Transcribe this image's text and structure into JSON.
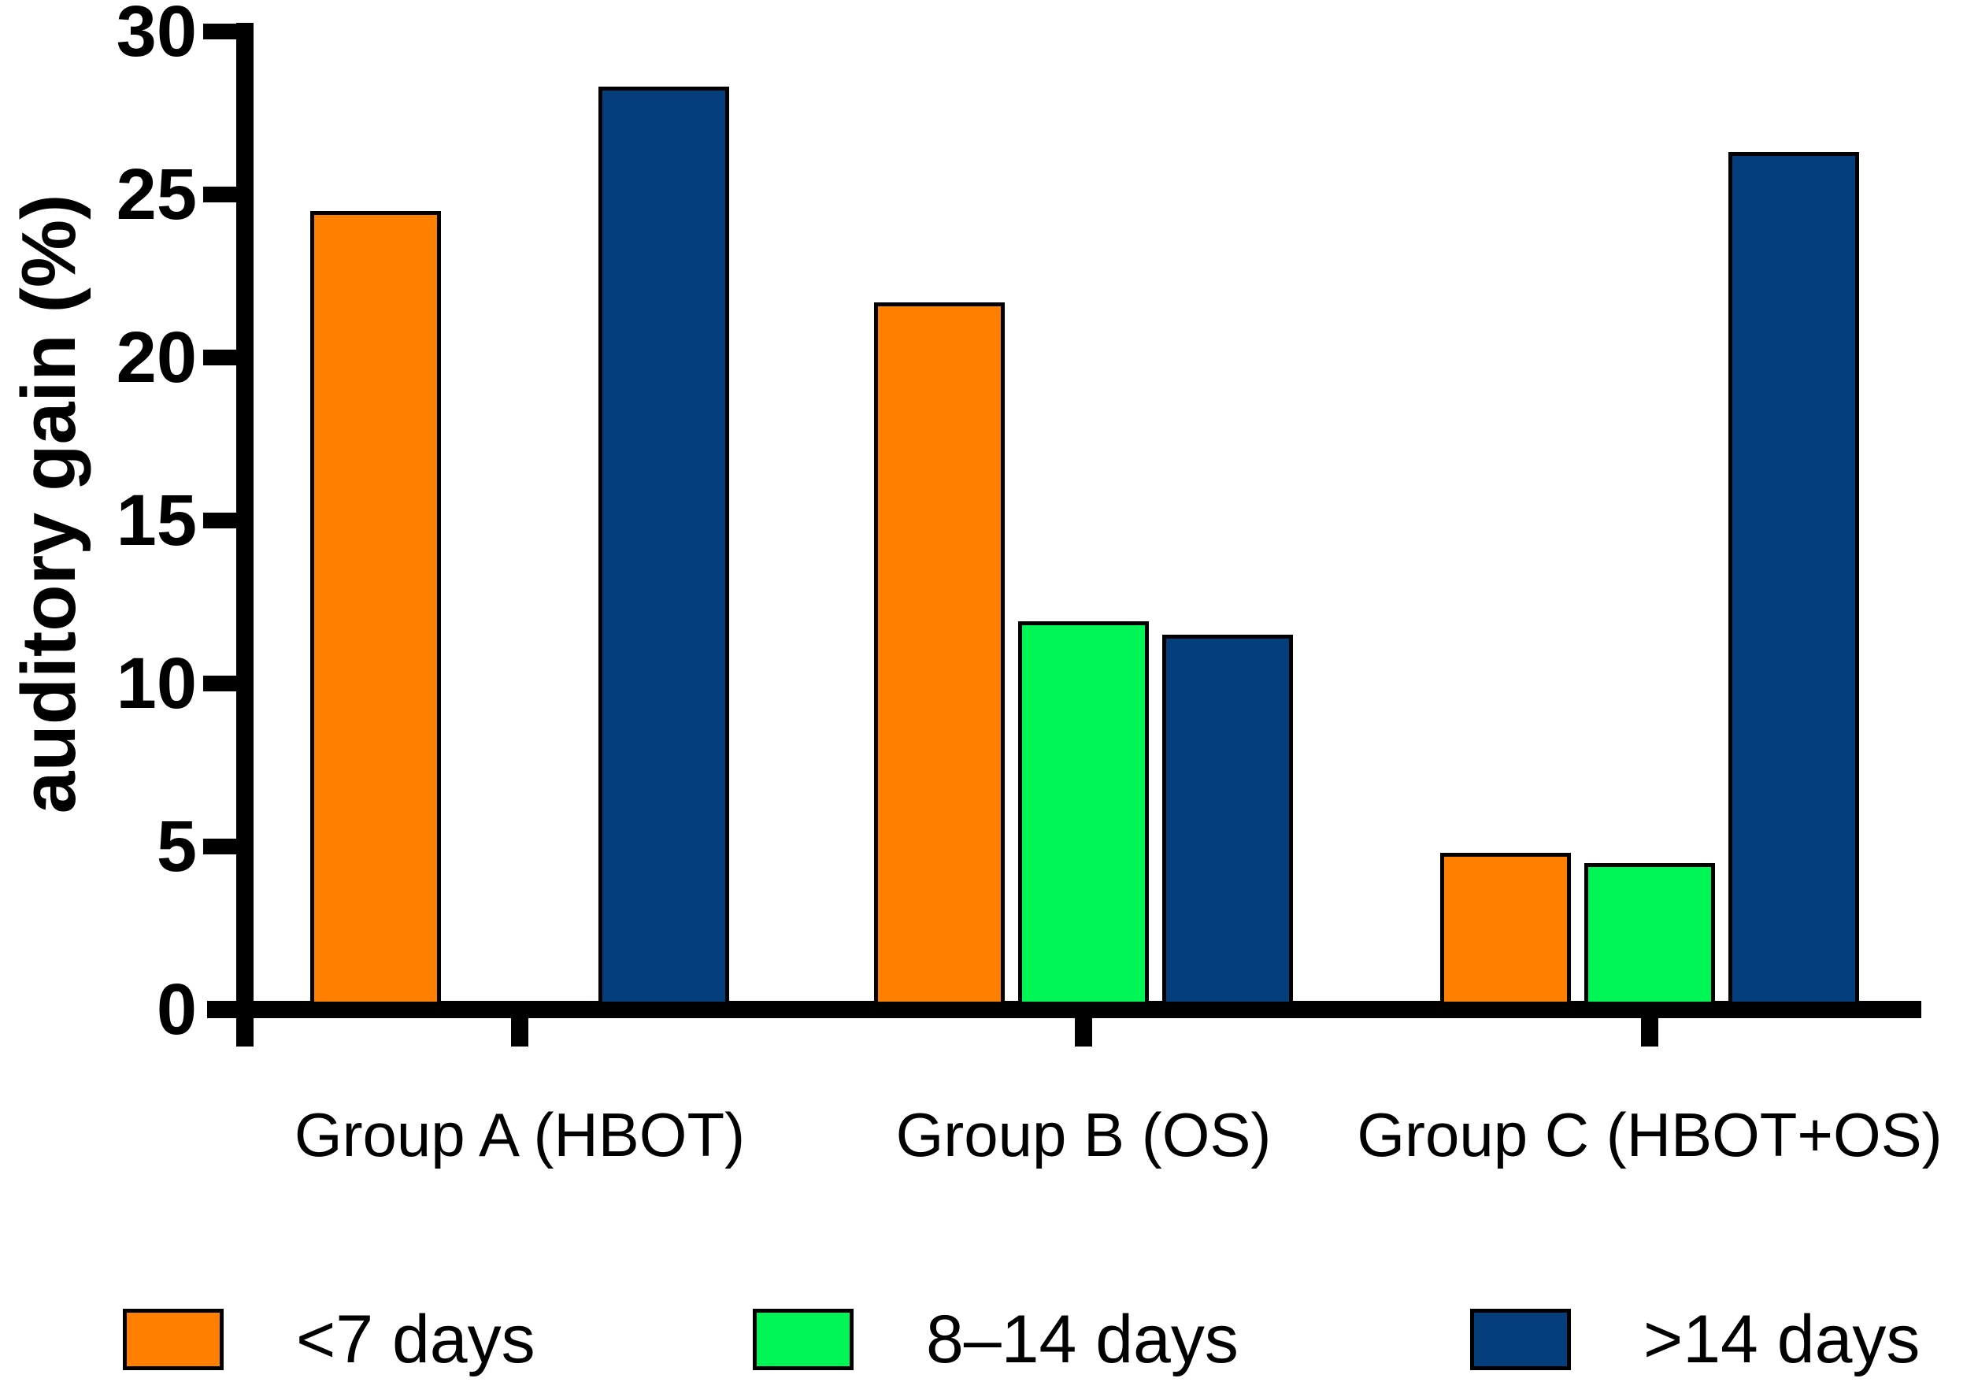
{
  "chart_data": {
    "type": "bar",
    "title": "",
    "ylabel": "auditory gain (%)",
    "xlabel": "",
    "ylim": [
      0,
      30
    ],
    "yticks": [
      0,
      5,
      10,
      15,
      20,
      25,
      30
    ],
    "grid": false,
    "legend_position": "bottom",
    "categories": [
      "Group A (HBOT)",
      "Group B (OS)",
      "Group C (HBOT+OS)"
    ],
    "series": [
      {
        "name": "<7 days",
        "color": "#FF8000",
        "values": [
          24.5,
          21.7,
          4.8
        ]
      },
      {
        "name": "8–14 days",
        "color": "#00F655",
        "values": [
          null,
          11.9,
          4.5
        ]
      },
      {
        "name": ">14 days",
        "color": "#043E7D",
        "values": [
          28.3,
          11.5,
          26.3
        ]
      }
    ],
    "bar_border_color": "#000000",
    "axis_color": "#000000",
    "background_color": "#FFFFFF"
  }
}
